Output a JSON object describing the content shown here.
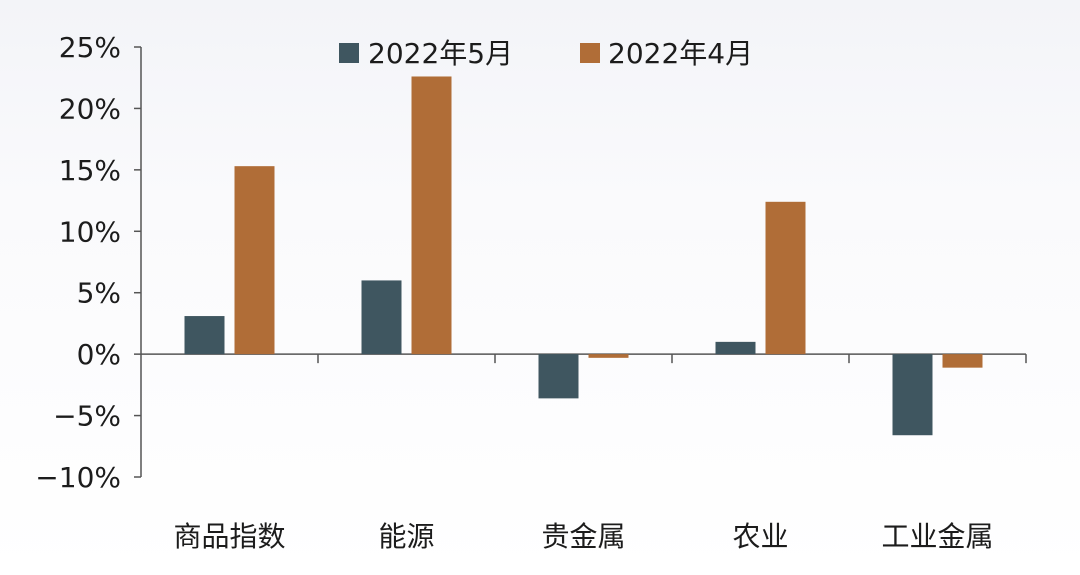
{
  "chart_data": {
    "type": "bar",
    "categories": [
      "商品指数",
      "能源",
      "贵金属",
      "农业",
      "工业金属"
    ],
    "series": [
      {
        "name": "2022年5月",
        "color": "#3f5660",
        "values": [
          3.1,
          6.0,
          -3.6,
          1.0,
          -6.6
        ]
      },
      {
        "name": "2022年4月",
        "color": "#b06d37",
        "values": [
          15.3,
          22.6,
          -0.3,
          12.4,
          -1.1
        ]
      }
    ],
    "ylim": [
      -10,
      25
    ],
    "yticks": [
      25,
      20,
      15,
      10,
      5,
      0,
      -5,
      -10
    ],
    "ytick_labels": [
      "25%",
      "20%",
      "15%",
      "10%",
      "5%",
      "0%",
      "−5%",
      "−10%"
    ],
    "title": "",
    "xlabel": "",
    "ylabel": "",
    "grid": false,
    "legend_position": "top"
  }
}
